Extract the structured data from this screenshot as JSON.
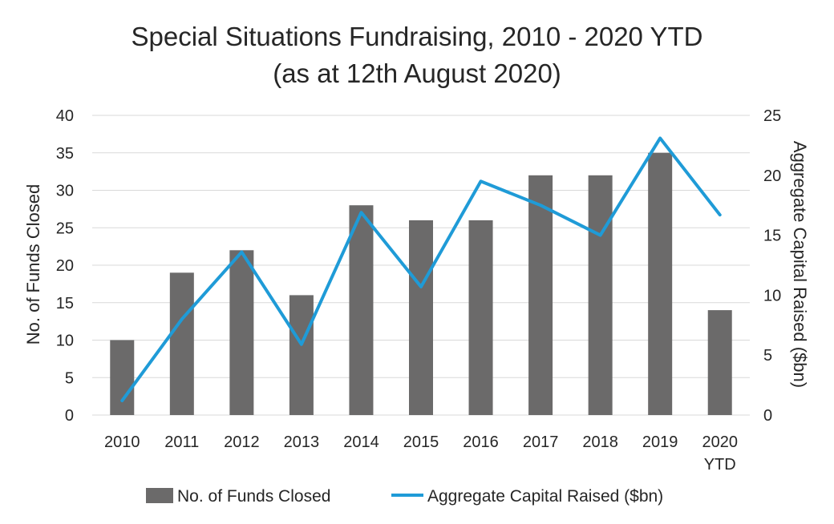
{
  "chart_data": {
    "type": "bar",
    "title": "Special Situations Fundraising, 2010 - 2020 YTD",
    "subtitle": "(as at 12th August 2020)",
    "categories": [
      "2010",
      "2011",
      "2012",
      "2013",
      "2014",
      "2015",
      "2016",
      "2017",
      "2018",
      "2019",
      "2020 YTD"
    ],
    "series": [
      {
        "name": "No. of Funds Closed",
        "type": "bar",
        "axis": "left",
        "color": "#6b6a6a",
        "values": [
          10,
          19,
          22,
          16,
          28,
          26,
          26,
          32,
          32,
          35,
          14
        ]
      },
      {
        "name": "Aggregate Capital Raised ($bn)",
        "type": "line",
        "axis": "right",
        "color": "#1f9bd7",
        "values": [
          1.2,
          8.0,
          13.6,
          5.9,
          16.9,
          10.7,
          19.5,
          17.5,
          15.0,
          23.1,
          16.7
        ]
      }
    ],
    "ylabel": "No. of Funds Closed",
    "y2label": "Aggregate Capital Raised ($bn)",
    "ylim": [
      0,
      40
    ],
    "yticks": [
      0,
      5,
      10,
      15,
      20,
      25,
      30,
      35,
      40
    ],
    "y2lim": [
      0,
      25
    ],
    "y2ticks": [
      0,
      5,
      10,
      15,
      20,
      25
    ],
    "grid": true,
    "legend_position": "bottom"
  }
}
